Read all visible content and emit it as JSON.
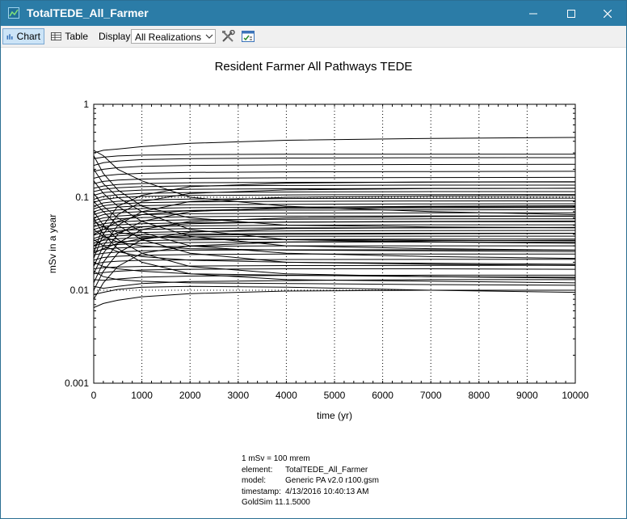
{
  "window": {
    "title": "TotalTEDE_All_Farmer"
  },
  "toolbar": {
    "chart_label": "Chart",
    "table_label": "Table",
    "display_label": "Display:",
    "display_value": "All Realizations"
  },
  "footer": {
    "units_note": "1 mSv = 100 mrem",
    "rows": [
      {
        "key": "element:",
        "value": "TotalTEDE_All_Farmer"
      },
      {
        "key": "model:",
        "value": "Generic PA v2.0 r100.gsm"
      },
      {
        "key": "timestamp:",
        "value": "4/13/2016 10:40:13 AM"
      }
    ],
    "version": "GoldSim 11.1.5000"
  },
  "chart_data": {
    "type": "line",
    "title": "Resident Farmer All Pathways TEDE",
    "xlabel": "time (yr)",
    "ylabel": "mSv in a year",
    "xlim": [
      0,
      10000
    ],
    "ylim": [
      0.001,
      1
    ],
    "yscale": "log",
    "x_ticks": [
      0,
      1000,
      2000,
      3000,
      4000,
      5000,
      6000,
      7000,
      8000,
      9000,
      10000
    ],
    "y_ticks": [
      0.001,
      0.01,
      0.1,
      1
    ],
    "y_tick_labels": [
      "0.001",
      "0.01",
      "0.1",
      "1"
    ],
    "grid": "dotted",
    "line_color": "#000000",
    "x": [
      0,
      200,
      500,
      1000,
      2000,
      4000,
      7000,
      10000
    ],
    "series": [
      {
        "values": [
          0.0065,
          0.0072,
          0.0078,
          0.0085,
          0.0092,
          0.0098,
          0.01,
          0.01
        ]
      },
      {
        "values": [
          0.009,
          0.0095,
          0.0102,
          0.0108,
          0.011,
          0.0108,
          0.01,
          0.0095
        ]
      },
      {
        "values": [
          0.011,
          0.0105,
          0.011,
          0.0118,
          0.0124,
          0.0127,
          0.013,
          0.013
        ]
      },
      {
        "values": [
          0.013,
          0.0128,
          0.0132,
          0.0138,
          0.0142,
          0.0144,
          0.0145,
          0.0145
        ]
      },
      {
        "values": [
          0.015,
          0.0155,
          0.016,
          0.0165,
          0.0168,
          0.017,
          0.017,
          0.0168
        ]
      },
      {
        "values": [
          0.017,
          0.0175,
          0.0178,
          0.018,
          0.0182,
          0.0184,
          0.0185,
          0.0185
        ]
      },
      {
        "values": [
          0.019,
          0.02,
          0.0205,
          0.021,
          0.0212,
          0.0214,
          0.0215,
          0.0215
        ]
      },
      {
        "values": [
          0.021,
          0.0225,
          0.0232,
          0.0238,
          0.0242,
          0.0245,
          0.0245,
          0.0245
        ]
      },
      {
        "values": [
          0.024,
          0.025,
          0.0258,
          0.0265,
          0.027,
          0.0272,
          0.0272,
          0.027
        ]
      },
      {
        "values": [
          0.026,
          0.0275,
          0.0285,
          0.0292,
          0.0297,
          0.03,
          0.03,
          0.03
        ]
      },
      {
        "values": [
          0.028,
          0.03,
          0.031,
          0.032,
          0.0326,
          0.033,
          0.033,
          0.0328
        ]
      },
      {
        "values": [
          0.03,
          0.032,
          0.0332,
          0.0342,
          0.0348,
          0.0352,
          0.0355,
          0.0355
        ]
      },
      {
        "values": [
          0.032,
          0.0345,
          0.0358,
          0.0368,
          0.0375,
          0.038,
          0.0382,
          0.0382
        ]
      },
      {
        "values": [
          0.034,
          0.037,
          0.0385,
          0.0395,
          0.0402,
          0.0408,
          0.041,
          0.041
        ]
      },
      {
        "values": [
          0.036,
          0.039,
          0.0405,
          0.0418,
          0.0428,
          0.0435,
          0.0438,
          0.044
        ]
      },
      {
        "values": [
          0.039,
          0.042,
          0.0438,
          0.045,
          0.046,
          0.0468,
          0.047,
          0.047
        ]
      },
      {
        "values": [
          0.042,
          0.045,
          0.0468,
          0.0482,
          0.0492,
          0.05,
          0.0505,
          0.0505
        ]
      },
      {
        "values": [
          0.045,
          0.0485,
          0.0505,
          0.052,
          0.0532,
          0.054,
          0.0545,
          0.0545
        ]
      },
      {
        "values": [
          0.048,
          0.052,
          0.0542,
          0.056,
          0.0572,
          0.058,
          0.0585,
          0.0585
        ]
      },
      {
        "values": [
          0.052,
          0.056,
          0.0585,
          0.0605,
          0.0618,
          0.0626,
          0.063,
          0.063
        ]
      },
      {
        "values": [
          0.056,
          0.06,
          0.0628,
          0.065,
          0.0665,
          0.0675,
          0.068,
          0.068
        ]
      },
      {
        "values": [
          0.06,
          0.065,
          0.068,
          0.0702,
          0.0718,
          0.0728,
          0.0732,
          0.0735
        ]
      },
      {
        "values": [
          0.065,
          0.07,
          0.073,
          0.0755,
          0.0772,
          0.0782,
          0.0788,
          0.079
        ]
      },
      {
        "values": [
          0.07,
          0.075,
          0.0785,
          0.081,
          0.083,
          0.084,
          0.0848,
          0.085
        ]
      },
      {
        "values": [
          0.075,
          0.081,
          0.0845,
          0.0872,
          0.0892,
          0.0905,
          0.0912,
          0.0915
        ]
      },
      {
        "values": [
          0.08,
          0.087,
          0.0905,
          0.0935,
          0.0955,
          0.0968,
          0.0975,
          0.0978
        ]
      },
      {
        "values": [
          0.088,
          0.095,
          0.099,
          0.102,
          0.1045,
          0.106,
          0.1068,
          0.107
        ]
      },
      {
        "values": [
          0.095,
          0.102,
          0.1065,
          0.11,
          0.1125,
          0.114,
          0.115,
          0.115
        ]
      },
      {
        "values": [
          0.105,
          0.112,
          0.116,
          0.1195,
          0.122,
          0.1235,
          0.1245,
          0.125
        ]
      },
      {
        "values": [
          0.115,
          0.122,
          0.1265,
          0.13,
          0.1325,
          0.134,
          0.135,
          0.135
        ]
      },
      {
        "values": [
          0.125,
          0.132,
          0.137,
          0.1405,
          0.143,
          0.1445,
          0.1455,
          0.146
        ]
      },
      {
        "values": [
          0.14,
          0.148,
          0.153,
          0.157,
          0.16,
          0.162,
          0.163,
          0.1635
        ]
      },
      {
        "values": [
          0.16,
          0.17,
          0.176,
          0.181,
          0.185,
          0.1875,
          0.189,
          0.19
        ]
      },
      {
        "values": [
          0.19,
          0.2,
          0.208,
          0.215,
          0.22,
          0.223,
          0.225,
          0.226
        ]
      },
      {
        "values": [
          0.22,
          0.235,
          0.245,
          0.254,
          0.26,
          0.264,
          0.266,
          0.267
        ]
      },
      {
        "values": [
          0.26,
          0.27,
          0.278,
          0.284,
          0.288,
          0.29,
          0.29,
          0.29
        ]
      },
      {
        "values": [
          0.3,
          0.32,
          0.33,
          0.35,
          0.38,
          0.41,
          0.43,
          0.44
        ]
      },
      {
        "values": [
          0.32,
          0.28,
          0.2,
          0.15,
          0.1,
          0.08,
          0.07,
          0.065
        ]
      },
      {
        "values": [
          0.28,
          0.18,
          0.12,
          0.08,
          0.06,
          0.05,
          0.048,
          0.047
        ]
      },
      {
        "values": [
          0.2,
          0.14,
          0.1,
          0.07,
          0.045,
          0.035,
          0.033,
          0.032
        ]
      },
      {
        "values": [
          0.15,
          0.11,
          0.08,
          0.055,
          0.038,
          0.03,
          0.028,
          0.027
        ]
      },
      {
        "values": [
          0.11,
          0.08,
          0.06,
          0.042,
          0.03,
          0.025,
          0.023,
          0.022
        ]
      },
      {
        "values": [
          0.09,
          0.07,
          0.05,
          0.035,
          0.025,
          0.02,
          0.019,
          0.0185
        ]
      },
      {
        "values": [
          0.07,
          0.05,
          0.035,
          0.025,
          0.018,
          0.015,
          0.014,
          0.0135
        ]
      },
      {
        "values": [
          0.06,
          0.04,
          0.028,
          0.02,
          0.015,
          0.013,
          0.0125,
          0.012
        ]
      },
      {
        "values": [
          0.008,
          0.012,
          0.018,
          0.025,
          0.03,
          0.033,
          0.034,
          0.0345
        ]
      },
      {
        "values": [
          0.01,
          0.016,
          0.025,
          0.035,
          0.042,
          0.046,
          0.047,
          0.0475
        ]
      },
      {
        "values": [
          0.012,
          0.02,
          0.032,
          0.045,
          0.055,
          0.06,
          0.062,
          0.0625
        ]
      },
      {
        "values": [
          0.015,
          0.025,
          0.04,
          0.055,
          0.07,
          0.078,
          0.08,
          0.081
        ]
      },
      {
        "values": [
          0.018,
          0.03,
          0.05,
          0.07,
          0.09,
          0.1,
          0.103,
          0.104
        ]
      },
      {
        "values": [
          0.022,
          0.04,
          0.065,
          0.09,
          0.11,
          0.12,
          0.124,
          0.125
        ]
      },
      {
        "values": [
          0.025,
          0.05,
          0.08,
          0.105,
          0.13,
          0.142,
          0.146,
          0.147
        ]
      },
      {
        "values": [
          0.02,
          0.018,
          0.017,
          0.016,
          0.015,
          0.0145,
          0.014,
          0.0138
        ]
      },
      {
        "values": [
          0.016,
          0.014,
          0.013,
          0.0125,
          0.012,
          0.0118,
          0.0115,
          0.0113
        ]
      },
      {
        "values": [
          0.035,
          0.03,
          0.026,
          0.023,
          0.021,
          0.02,
          0.0195,
          0.019
        ]
      },
      {
        "values": [
          0.045,
          0.038,
          0.033,
          0.03,
          0.028,
          0.027,
          0.0265,
          0.026
        ]
      },
      {
        "values": [
          0.055,
          0.048,
          0.042,
          0.038,
          0.036,
          0.035,
          0.0345,
          0.034
        ]
      },
      {
        "values": [
          0.04,
          0.045,
          0.055,
          0.065,
          0.072,
          0.076,
          0.077,
          0.0775
        ]
      },
      {
        "values": [
          0.03,
          0.035,
          0.042,
          0.048,
          0.052,
          0.054,
          0.055,
          0.0555
        ]
      },
      {
        "values": [
          0.025,
          0.028,
          0.032,
          0.036,
          0.039,
          0.04,
          0.0405,
          0.0408
        ]
      }
    ]
  }
}
